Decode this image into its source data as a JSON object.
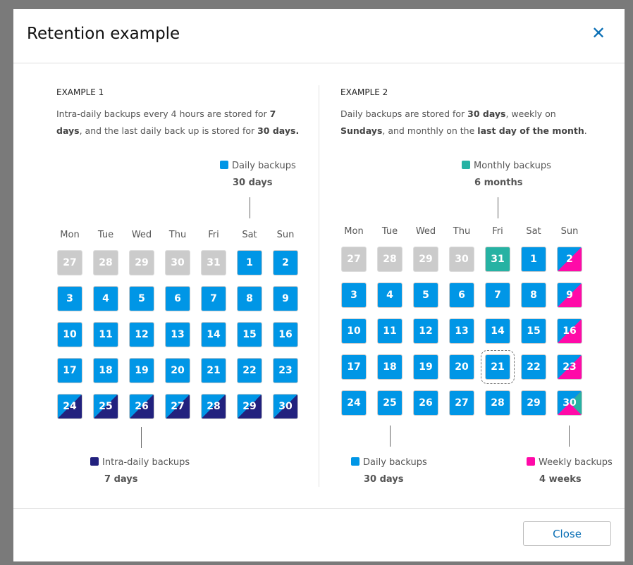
{
  "dialog": {
    "title": "Retention example",
    "close_label": "Close"
  },
  "colors": {
    "daily": "#0096e6",
    "intra": "#22217e",
    "monthly": "#26b2a3",
    "weekly": "#ff0aa8",
    "past": "#cbcbcb"
  },
  "weekdays": [
    "Mon",
    "Tue",
    "Wed",
    "Thu",
    "Fri",
    "Sat",
    "Sun"
  ],
  "example1": {
    "heading": "EXAMPLE 1",
    "text1": "Intra-daily backups every 4 hours are stored for ",
    "bold1": "7 days",
    "text2": ", and the last daily back up is stored for ",
    "bold2": "30 days.",
    "legend_daily": {
      "label": "Daily backups",
      "value": "30 days"
    },
    "legend_intra": {
      "label": "Intra-daily backups",
      "value": "7 days"
    },
    "days": [
      [
        "27",
        "past"
      ],
      [
        "28",
        "past"
      ],
      [
        "29",
        "past"
      ],
      [
        "30",
        "past"
      ],
      [
        "31",
        "past"
      ],
      [
        "1",
        "daily"
      ],
      [
        "2",
        "daily"
      ],
      [
        "3",
        "daily"
      ],
      [
        "4",
        "daily"
      ],
      [
        "5",
        "daily"
      ],
      [
        "6",
        "daily"
      ],
      [
        "7",
        "daily"
      ],
      [
        "8",
        "daily"
      ],
      [
        "9",
        "daily"
      ],
      [
        "10",
        "daily"
      ],
      [
        "11",
        "daily"
      ],
      [
        "12",
        "daily"
      ],
      [
        "13",
        "daily"
      ],
      [
        "14",
        "daily"
      ],
      [
        "15",
        "daily"
      ],
      [
        "16",
        "daily"
      ],
      [
        "17",
        "daily"
      ],
      [
        "18",
        "daily"
      ],
      [
        "19",
        "daily"
      ],
      [
        "20",
        "daily"
      ],
      [
        "21",
        "daily"
      ],
      [
        "22",
        "daily"
      ],
      [
        "23",
        "daily"
      ],
      [
        "24",
        "intra"
      ],
      [
        "25",
        "intra"
      ],
      [
        "26",
        "intra"
      ],
      [
        "27",
        "intra"
      ],
      [
        "28",
        "intra"
      ],
      [
        "29",
        "intra"
      ],
      [
        "30",
        "intra"
      ]
    ]
  },
  "example2": {
    "heading": "EXAMPLE 2",
    "t1": "Daily backups are stored for ",
    "b1": "30 days",
    "t2": ", weekly on ",
    "b2": "Sundays",
    "t3": ", and monthly on the ",
    "b3": "last day of the month",
    "t4": ".",
    "legend_monthly": {
      "label": "Monthly backups",
      "value": "6 months"
    },
    "legend_daily": {
      "label": "Daily backups",
      "value": "30 days"
    },
    "legend_weekly": {
      "label": "Weekly backups",
      "value": "4 weeks"
    },
    "selected_day": "21",
    "days": [
      [
        "27",
        "past"
      ],
      [
        "28",
        "past"
      ],
      [
        "29",
        "past"
      ],
      [
        "30",
        "past"
      ],
      [
        "31",
        "monthly"
      ],
      [
        "1",
        "daily"
      ],
      [
        "2",
        "weekly"
      ],
      [
        "3",
        "daily"
      ],
      [
        "4",
        "daily"
      ],
      [
        "5",
        "daily"
      ],
      [
        "6",
        "daily"
      ],
      [
        "7",
        "daily"
      ],
      [
        "8",
        "daily"
      ],
      [
        "9",
        "weekly"
      ],
      [
        "10",
        "daily"
      ],
      [
        "11",
        "daily"
      ],
      [
        "12",
        "daily"
      ],
      [
        "13",
        "daily"
      ],
      [
        "14",
        "daily"
      ],
      [
        "15",
        "daily"
      ],
      [
        "16",
        "weekly"
      ],
      [
        "17",
        "daily"
      ],
      [
        "18",
        "daily"
      ],
      [
        "19",
        "daily"
      ],
      [
        "20",
        "daily"
      ],
      [
        "21",
        "daily"
      ],
      [
        "22",
        "daily"
      ],
      [
        "23",
        "weekly"
      ],
      [
        "24",
        "daily"
      ],
      [
        "25",
        "daily"
      ],
      [
        "26",
        "daily"
      ],
      [
        "27",
        "daily"
      ],
      [
        "28",
        "daily"
      ],
      [
        "29",
        "daily"
      ],
      [
        "30",
        "wm"
      ]
    ]
  }
}
